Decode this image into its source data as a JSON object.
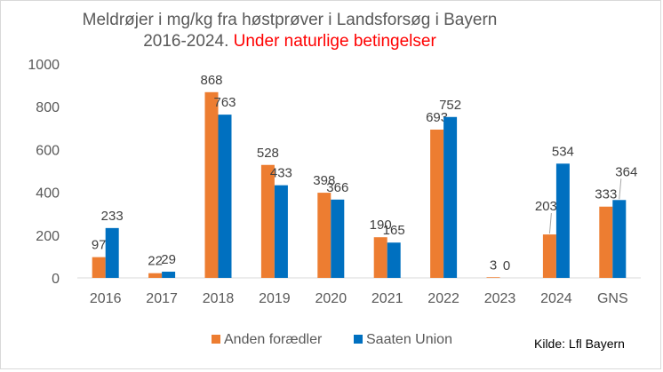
{
  "chart_data": {
    "type": "bar",
    "title_line1": "Meldrøjer i mg/kg fra høstprøver i Landsforsøg i Bayern",
    "title_line2": "2016-2024.",
    "title_highlight": "Under naturlige betingelser",
    "categories": [
      "2016",
      "2017",
      "2018",
      "2019",
      "2020",
      "2021",
      "2022",
      "2023",
      "2024",
      "GNS"
    ],
    "series": [
      {
        "name": "Anden forædler",
        "color": "#ed7d31",
        "values": [
          97,
          22,
          868,
          528,
          398,
          190,
          693,
          3,
          203,
          333
        ]
      },
      {
        "name": "Saaten Union",
        "color": "#0070c0",
        "values": [
          233,
          29,
          763,
          433,
          366,
          165,
          752,
          0,
          534,
          364
        ]
      }
    ],
    "yticks": [
      "0",
      "200",
      "400",
      "600",
      "800",
      "1000"
    ],
    "ylim": [
      0,
      1000
    ],
    "grid": false,
    "legend": "bottom-center",
    "source": "Kilde: Lfl Bayern"
  }
}
